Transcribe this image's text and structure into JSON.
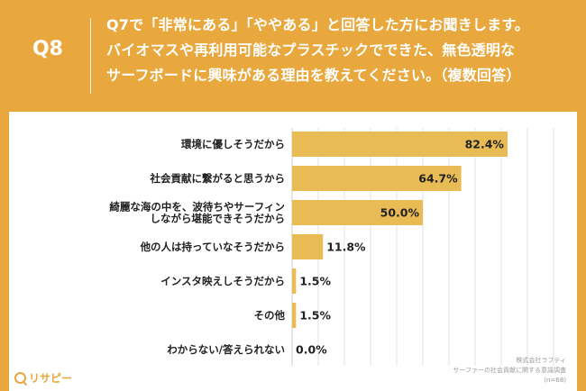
{
  "header": {
    "qnum": "Q8",
    "question_lines": [
      "Q7で「非常にある」「ややある」と回答した方にお聞きします。",
      "バイオマスや再利用可能なプラスチックでできた、無色透明な",
      "サーフボードに興味がある理由を教えてください。（複数回答）"
    ]
  },
  "chart_data": {
    "type": "bar",
    "orientation": "horizontal",
    "categories": [
      [
        "環境に優しそうだから"
      ],
      [
        "社会貢献に繋がると思うから"
      ],
      [
        "綺麗な海の中を、波待ちやサーフィン",
        "しながら堪能できそうだから"
      ],
      [
        "他の人は持っていなそうだから"
      ],
      [
        "インスタ映えしそうだから"
      ],
      [
        "その他"
      ],
      [
        "わからない/答えられない"
      ]
    ],
    "values": [
      82.4,
      64.7,
      50.0,
      11.8,
      1.5,
      1.5,
      0.0
    ],
    "value_labels": [
      "82.4%",
      "64.7%",
      "50.0%",
      "11.8%",
      "1.5%",
      "1.5%",
      "0.0%"
    ],
    "xlim": [
      0,
      100
    ],
    "grid": true,
    "bar_color": "#E9BB55",
    "grid_color": "#e3e3e3"
  },
  "credit": {
    "lines": [
      "株式会社ラフティ",
      "サーファーの社会貢献に関する意識調査",
      "(n=68)"
    ]
  },
  "logo": {
    "text": "リサピー"
  },
  "colors": {
    "accent": "#E8A83D",
    "panel": "#ffffff"
  }
}
